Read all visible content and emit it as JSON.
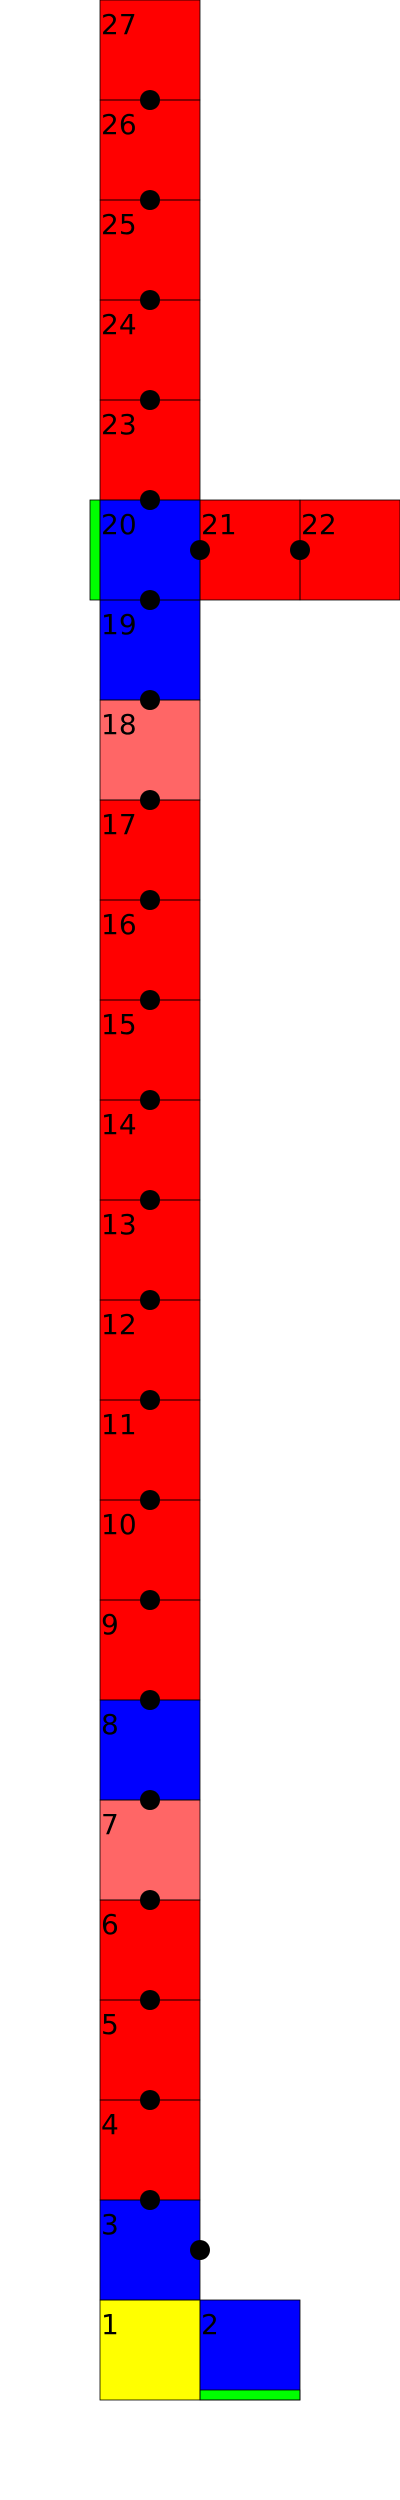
{
  "colors": {
    "red": "#ff0000",
    "light_red": "#ff6666",
    "blue": "#0000ff",
    "yellow": "#ffff00",
    "green": "#00ff00",
    "dot": "#000000",
    "grid_line": "#000000"
  },
  "cells": [
    {
      "label": "1",
      "color": "yellow"
    },
    {
      "label": "2",
      "color": "blue"
    },
    {
      "label": "3",
      "color": "blue"
    },
    {
      "label": "4",
      "color": "red"
    },
    {
      "label": "5",
      "color": "red"
    },
    {
      "label": "6",
      "color": "red"
    },
    {
      "label": "7",
      "color": "light_red"
    },
    {
      "label": "8",
      "color": "blue"
    },
    {
      "label": "9",
      "color": "red"
    },
    {
      "label": "10",
      "color": "red"
    },
    {
      "label": "11",
      "color": "red"
    },
    {
      "label": "12",
      "color": "red"
    },
    {
      "label": "13",
      "color": "red"
    },
    {
      "label": "14",
      "color": "red"
    },
    {
      "label": "15",
      "color": "red"
    },
    {
      "label": "16",
      "color": "red"
    },
    {
      "label": "17",
      "color": "red"
    },
    {
      "label": "18",
      "color": "light_red"
    },
    {
      "label": "19",
      "color": "blue"
    },
    {
      "label": "20",
      "color": "blue"
    },
    {
      "label": "21",
      "color": "red"
    },
    {
      "label": "22",
      "color": "red"
    },
    {
      "label": "23",
      "color": "red"
    },
    {
      "label": "24",
      "color": "red"
    },
    {
      "label": "25",
      "color": "red"
    },
    {
      "label": "26",
      "color": "red"
    },
    {
      "label": "27",
      "color": "red"
    }
  ]
}
